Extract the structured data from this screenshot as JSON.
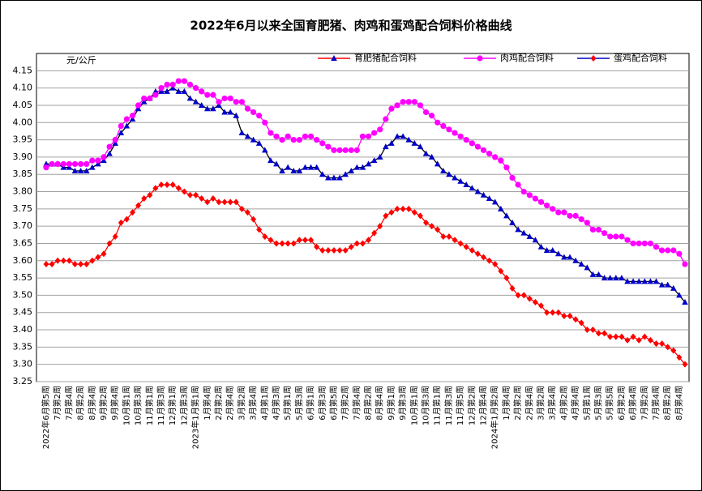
{
  "chart_data": {
    "type": "line",
    "title": "2022年6月以来全国育肥猪、肉鸡和蛋鸡配合饲料价格曲线",
    "y_label": "元/公斤",
    "ylim": [
      3.25,
      4.2
    ],
    "yticks": [
      3.25,
      {
        "value": 3.3,
        "label": "3.30"
      },
      3.35,
      {
        "value": 3.4,
        "label": "3.40"
      },
      3.45,
      {
        "value": 3.5,
        "label": "3.50"
      },
      3.55,
      {
        "value": 3.6,
        "label": "3.60"
      },
      3.65,
      {
        "value": 3.7,
        "label": "3.70"
      },
      3.75,
      {
        "value": 3.8,
        "label": "3.80"
      },
      3.85,
      {
        "value": 3.9,
        "label": "3.90"
      },
      3.95,
      {
        "value": 4.0,
        "label": "4.00"
      },
      4.05,
      {
        "value": 4.1,
        "label": "4.10"
      },
      4.15
    ],
    "grid": true,
    "legend": "top",
    "categories": [
      "2022年6月第5周",
      null,
      "7月第2周",
      null,
      "7月第4周",
      null,
      "8月第2周",
      null,
      "8月第4周",
      null,
      "9月第2周",
      null,
      "9月第4周",
      null,
      "10月第1周",
      null,
      "10月第3周",
      null,
      "11月第1周",
      null,
      "11月第3周",
      null,
      "12月第1周",
      null,
      "12月第3周",
      null,
      "2023年1月第1周",
      null,
      "1月第4周",
      null,
      "2月第2周",
      null,
      "2月第4周",
      null,
      "3月第2周",
      null,
      "3月第4周",
      null,
      "4月第1周",
      null,
      "4月第3周",
      null,
      "5月第1周",
      null,
      "5月第3周",
      null,
      "6月第1周",
      null,
      "6月第3周",
      null,
      "6月第5周",
      null,
      "7月第2周",
      null,
      "7月第4周",
      null,
      "8月第2周",
      null,
      "8月第4周",
      null,
      "9月第1周",
      null,
      "9月第3周",
      null,
      "10月第1周",
      null,
      "10月第3周",
      null,
      "11月第1周",
      null,
      "11月第3周",
      null,
      "11月第5周",
      null,
      "12月第2周",
      null,
      "12月第4周",
      null,
      "2024年1月第2周",
      null,
      "1月第4周",
      null,
      "2月第2周",
      null,
      "2月第4周",
      null,
      "3月第2周",
      null,
      "3月第4周",
      null,
      "4月第2周",
      null,
      "4月第4周",
      null,
      "5月第1周",
      null,
      "5月第3周",
      null,
      "5月第5周",
      null,
      "6月第2周",
      null,
      "6月第4周",
      null,
      "7月第2周",
      null,
      "7月第4周",
      null,
      "8月第2周",
      null,
      "8月第4周",
      null
    ],
    "series": [
      {
        "name": "育肥猪配合饲料",
        "color": "#0000cc",
        "line_color": "#000000",
        "legend_line_color": "#ff0000",
        "marker": "triangle",
        "values": [
          3.88,
          3.88,
          3.88,
          3.87,
          3.87,
          3.86,
          3.86,
          3.86,
          3.87,
          3.88,
          3.89,
          3.91,
          3.94,
          3.97,
          3.99,
          4.01,
          4.04,
          4.06,
          4.07,
          4.09,
          4.09,
          4.09,
          4.1,
          4.09,
          4.09,
          4.07,
          4.06,
          4.05,
          4.04,
          4.04,
          4.05,
          4.03,
          4.03,
          4.02,
          3.97,
          3.96,
          3.95,
          3.94,
          3.92,
          3.89,
          3.88,
          3.86,
          3.87,
          3.86,
          3.86,
          3.87,
          3.87,
          3.87,
          3.85,
          3.84,
          3.84,
          3.84,
          3.85,
          3.86,
          3.87,
          3.87,
          3.88,
          3.89,
          3.9,
          3.93,
          3.94,
          3.96,
          3.96,
          3.95,
          3.94,
          3.93,
          3.91,
          3.9,
          3.88,
          3.86,
          3.85,
          3.84,
          3.83,
          3.82,
          3.81,
          3.8,
          3.79,
          3.78,
          3.77,
          3.75,
          3.73,
          3.71,
          3.69,
          3.68,
          3.67,
          3.66,
          3.64,
          3.63,
          3.63,
          3.62,
          3.61,
          3.61,
          3.6,
          3.59,
          3.58,
          3.56,
          3.56,
          3.55,
          3.55,
          3.55,
          3.55,
          3.54,
          3.54,
          3.54,
          3.54,
          3.54,
          3.54,
          3.53,
          3.53,
          3.52,
          3.5,
          3.48
        ]
      },
      {
        "name": "肉鸡配合饲料",
        "color": "#ff00ff",
        "line_color": "#ff00ff",
        "legend_line_color": "#ff00ff",
        "marker": "circle",
        "values": [
          3.87,
          3.88,
          3.88,
          3.88,
          3.88,
          3.88,
          3.88,
          3.88,
          3.89,
          3.89,
          3.9,
          3.93,
          3.95,
          3.99,
          4.01,
          4.02,
          4.05,
          4.07,
          4.07,
          4.08,
          4.1,
          4.11,
          4.11,
          4.12,
          4.12,
          4.11,
          4.1,
          4.09,
          4.08,
          4.08,
          4.06,
          4.07,
          4.07,
          4.06,
          4.06,
          4.04,
          4.03,
          4.02,
          4.0,
          3.97,
          3.96,
          3.95,
          3.96,
          3.95,
          3.95,
          3.96,
          3.96,
          3.95,
          3.94,
          3.93,
          3.92,
          3.92,
          3.92,
          3.92,
          3.92,
          3.96,
          3.96,
          3.97,
          3.98,
          4.01,
          4.04,
          4.05,
          4.06,
          4.06,
          4.06,
          4.05,
          4.03,
          4.02,
          4.0,
          3.99,
          3.98,
          3.97,
          3.96,
          3.95,
          3.94,
          3.93,
          3.92,
          3.91,
          3.9,
          3.89,
          3.87,
          3.84,
          3.82,
          3.8,
          3.79,
          3.78,
          3.77,
          3.76,
          3.75,
          3.74,
          3.74,
          3.73,
          3.73,
          3.72,
          3.71,
          3.69,
          3.69,
          3.68,
          3.67,
          3.67,
          3.67,
          3.66,
          3.65,
          3.65,
          3.65,
          3.65,
          3.64,
          3.63,
          3.63,
          3.63,
          3.62,
          3.59
        ]
      },
      {
        "name": "蛋鸡配合饲料",
        "color": "#ff0000",
        "line_color": "#ff0000",
        "legend_line_color": "#0000cc",
        "marker": "diamond",
        "values": [
          3.59,
          3.59,
          3.6,
          3.6,
          3.6,
          3.59,
          3.59,
          3.59,
          3.6,
          3.61,
          3.62,
          3.65,
          3.67,
          3.71,
          3.72,
          3.74,
          3.76,
          3.78,
          3.79,
          3.81,
          3.82,
          3.82,
          3.82,
          3.81,
          3.8,
          3.79,
          3.79,
          3.78,
          3.77,
          3.78,
          3.77,
          3.77,
          3.77,
          3.77,
          3.75,
          3.74,
          3.72,
          3.69,
          3.67,
          3.66,
          3.65,
          3.65,
          3.65,
          3.65,
          3.66,
          3.66,
          3.66,
          3.64,
          3.63,
          3.63,
          3.63,
          3.63,
          3.63,
          3.64,
          3.65,
          3.65,
          3.66,
          3.68,
          3.7,
          3.73,
          3.74,
          3.75,
          3.75,
          3.75,
          3.74,
          3.73,
          3.71,
          3.7,
          3.69,
          3.67,
          3.67,
          3.66,
          3.65,
          3.64,
          3.63,
          3.62,
          3.61,
          3.6,
          3.59,
          3.57,
          3.55,
          3.52,
          3.5,
          3.5,
          3.49,
          3.48,
          3.47,
          3.45,
          3.45,
          3.45,
          3.44,
          3.44,
          3.43,
          3.42,
          3.4,
          3.4,
          3.39,
          3.39,
          3.38,
          3.38,
          3.38,
          3.37,
          3.38,
          3.37,
          3.38,
          3.37,
          3.36,
          3.36,
          3.35,
          3.34,
          3.32,
          3.3
        ]
      }
    ]
  }
}
